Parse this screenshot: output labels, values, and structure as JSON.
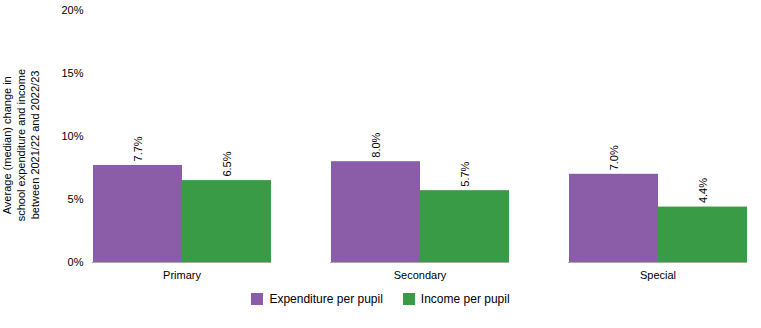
{
  "chart_data": {
    "type": "bar",
    "categories": [
      "Primary",
      "Secondary",
      "Special"
    ],
    "series": [
      {
        "name": "Expenditure per pupil",
        "color": "#8B5CA8",
        "values": [
          7.7,
          8.0,
          7.0
        ],
        "value_labels": [
          "7.7%",
          "8.0%",
          "7.0%"
        ]
      },
      {
        "name": "Income per pupil",
        "color": "#3A9B47",
        "values": [
          6.5,
          5.7,
          4.4
        ],
        "value_labels": [
          "6.5%",
          "5.7%",
          "4.4%"
        ]
      }
    ],
    "ylabel": "Average (median) change in\nschool expenditure and income\nbetween 2021/22 and 2022/23",
    "ylim": [
      0,
      20
    ],
    "yticks": [
      {
        "value": 0,
        "label": "0%"
      },
      {
        "value": 5,
        "label": "5%"
      },
      {
        "value": 10,
        "label": "10%"
      },
      {
        "value": 15,
        "label": "15%"
      },
      {
        "value": 20,
        "label": "20%"
      }
    ],
    "data_labels": true,
    "grid": false,
    "legend": "bottom"
  }
}
